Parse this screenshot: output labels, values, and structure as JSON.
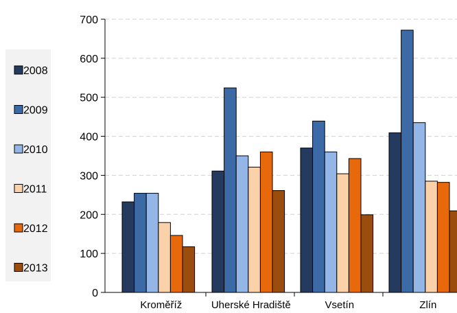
{
  "chart_data": {
    "type": "bar",
    "categories": [
      "Kroměříž",
      "Uherské Hradiště",
      "Vsetín",
      "Zlín"
    ],
    "series": [
      {
        "name": "2008",
        "color": "#243a5e",
        "values": [
          232,
          311,
          370,
          409
        ]
      },
      {
        "name": "2009",
        "color": "#3b6aa6",
        "values": [
          254,
          524,
          439,
          672
        ]
      },
      {
        "name": "2010",
        "color": "#93b6e6",
        "values": [
          254,
          350,
          360,
          435
        ]
      },
      {
        "name": "2011",
        "color": "#fbd1aa",
        "values": [
          179,
          321,
          304,
          285
        ]
      },
      {
        "name": "2012",
        "color": "#e8690c",
        "values": [
          146,
          360,
          343,
          282
        ]
      },
      {
        "name": "2013",
        "color": "#9a4d0d",
        "values": [
          117,
          261,
          199,
          209
        ]
      }
    ],
    "yticks": [
      "0",
      "100",
      "200",
      "300",
      "400",
      "500",
      "600",
      "700"
    ],
    "ylim": [
      0,
      700
    ],
    "grid": true,
    "legend_position": "left"
  }
}
